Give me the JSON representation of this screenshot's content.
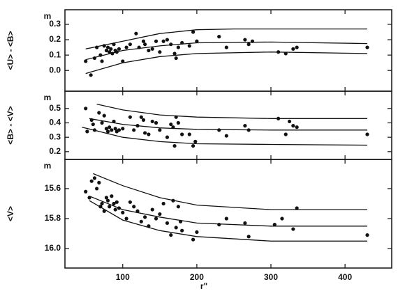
{
  "chart_data": [
    {
      "type": "scatter",
      "ylabel": "<U> - <B>",
      "unit": "m",
      "xlim": [
        22,
        463
      ],
      "xticks": [
        100,
        200,
        300,
        400
      ],
      "ylim": [
        -0.135,
        0.395
      ],
      "yticks": [
        {
          "value": 0,
          "label": "0.0"
        },
        0.1,
        0.2,
        0.3
      ],
      "color": "#111",
      "points": {
        "x": [
          50,
          57,
          62,
          65,
          70,
          72,
          75,
          78,
          80,
          82,
          84,
          86,
          88,
          90,
          92,
          95,
          100,
          105,
          110,
          118,
          122,
          128,
          130,
          135,
          140,
          145,
          150,
          155,
          160,
          165,
          170,
          172,
          175,
          180,
          190,
          195,
          200,
          230,
          240,
          265,
          270,
          275,
          310,
          320,
          330,
          335,
          430
        ],
        "y": [
          0.06,
          -0.03,
          0.08,
          0.15,
          0.1,
          0.06,
          0.16,
          0.13,
          0.15,
          0.12,
          0.14,
          0.11,
          0.17,
          0.13,
          0.12,
          0.14,
          0.06,
          0.15,
          0.17,
          0.24,
          0.15,
          0.19,
          0.17,
          0.13,
          0.14,
          0.19,
          0.12,
          0.19,
          0.2,
          0.17,
          0.11,
          0.08,
          0.15,
          0.18,
          0.16,
          0.25,
          0.19,
          0.22,
          0.15,
          0.2,
          0.17,
          0.19,
          0.12,
          0.11,
          0.14,
          0.15,
          0.15
        ]
      },
      "curves": [
        {
          "x": [
            50,
            100,
            150,
            200,
            250,
            300,
            430
          ],
          "y": [
            0.14,
            0.19,
            0.24,
            0.265,
            0.27,
            0.27,
            0.27
          ]
        },
        {
          "x": [
            50,
            100,
            150,
            200,
            300,
            430
          ],
          "y": [
            0.07,
            0.13,
            0.16,
            0.18,
            0.185,
            0.175
          ]
        },
        {
          "x": [
            50,
            100,
            150,
            200,
            300,
            430
          ],
          "y": [
            -0.02,
            0.05,
            0.09,
            0.11,
            0.12,
            0.11
          ]
        }
      ]
    },
    {
      "type": "scatter",
      "ylabel": "<B> - <V>",
      "unit": "m",
      "xlim": [
        22,
        463
      ],
      "xticks": [
        100,
        200,
        300,
        400
      ],
      "ylim": [
        0.146,
        0.62
      ],
      "yticks": [
        0.2,
        0.3,
        0.4,
        0.5
      ],
      "color": "#111",
      "points": {
        "x": [
          50,
          52,
          58,
          60,
          62,
          68,
          72,
          75,
          78,
          80,
          82,
          85,
          88,
          90,
          92,
          95,
          100,
          110,
          115,
          120,
          125,
          128,
          130,
          135,
          140,
          145,
          150,
          160,
          165,
          168,
          170,
          172,
          175,
          180,
          190,
          195,
          198,
          230,
          240,
          265,
          270,
          310,
          320,
          325,
          330,
          335,
          430
        ],
        "y": [
          0.5,
          0.34,
          0.42,
          0.39,
          0.35,
          0.47,
          0.4,
          0.45,
          0.36,
          0.34,
          0.37,
          0.35,
          0.41,
          0.36,
          0.34,
          0.35,
          0.36,
          0.44,
          0.35,
          0.38,
          0.44,
          0.42,
          0.33,
          0.32,
          0.41,
          0.4,
          0.35,
          0.3,
          0.39,
          0.37,
          0.24,
          0.44,
          0.4,
          0.32,
          0.32,
          0.24,
          0.27,
          0.35,
          0.31,
          0.38,
          0.35,
          0.43,
          0.32,
          0.41,
          0.38,
          0.37,
          0.32
        ]
      },
      "curves": [
        {
          "x": [
            65,
            100,
            150,
            200,
            300,
            430
          ],
          "y": [
            0.53,
            0.49,
            0.455,
            0.44,
            0.43,
            0.43
          ]
        },
        {
          "x": [
            55,
            100,
            150,
            200,
            300,
            430
          ],
          "y": [
            0.43,
            0.39,
            0.365,
            0.355,
            0.35,
            0.35
          ]
        },
        {
          "x": [
            45,
            100,
            150,
            200,
            300,
            430
          ],
          "y": [
            0.37,
            0.3,
            0.27,
            0.255,
            0.25,
            0.245
          ]
        }
      ]
    },
    {
      "type": "scatter",
      "ylabel": "<V>",
      "unit": "m",
      "xlabel": "r\"",
      "xlim": [
        22,
        463
      ],
      "xticks": [
        100,
        200,
        300,
        400
      ],
      "ylim": [
        16.13,
        15.405
      ],
      "yticks": [
        15.6,
        15.8,
        {
          "value": 16,
          "label": "16.0"
        }
      ],
      "color": "#111",
      "points": {
        "x": [
          50,
          55,
          58,
          62,
          65,
          68,
          70,
          72,
          75,
          78,
          80,
          82,
          85,
          88,
          90,
          92,
          95,
          100,
          105,
          110,
          115,
          120,
          125,
          130,
          135,
          140,
          145,
          150,
          155,
          160,
          165,
          168,
          172,
          175,
          178,
          180,
          195,
          200,
          230,
          240,
          265,
          270,
          305,
          315,
          330,
          335,
          430
        ],
        "y": [
          15.62,
          15.66,
          15.55,
          15.53,
          15.6,
          15.56,
          15.72,
          15.7,
          15.75,
          15.66,
          15.68,
          15.72,
          15.65,
          15.7,
          15.74,
          15.69,
          15.73,
          15.76,
          15.8,
          15.69,
          15.72,
          15.75,
          15.82,
          15.79,
          15.85,
          15.74,
          15.8,
          15.77,
          15.7,
          15.83,
          15.91,
          15.68,
          15.86,
          15.72,
          15.82,
          15.88,
          15.94,
          15.89,
          15.84,
          15.8,
          15.83,
          15.92,
          15.84,
          15.8,
          15.87,
          15.73,
          15.91
        ]
      },
      "curves": [
        {
          "x": [
            60,
            100,
            150,
            200,
            300,
            430
          ],
          "y": [
            15.5,
            15.58,
            15.66,
            15.71,
            15.74,
            15.74
          ]
        },
        {
          "x": [
            55,
            100,
            150,
            200,
            300,
            430
          ],
          "y": [
            15.65,
            15.74,
            15.79,
            15.83,
            15.85,
            15.85
          ]
        },
        {
          "x": [
            55,
            100,
            150,
            200,
            300,
            430
          ],
          "y": [
            15.68,
            15.81,
            15.88,
            15.92,
            15.95,
            15.95
          ]
        }
      ]
    }
  ]
}
